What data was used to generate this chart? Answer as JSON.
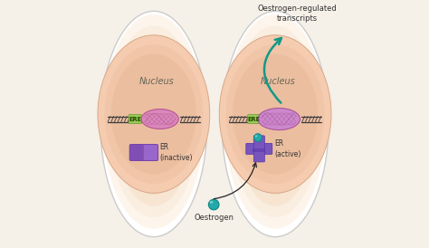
{
  "bg_color": "#f5f0e8",
  "cell_bg": "#f8f3ec",
  "cytoplasm_color": "#f5e8d8",
  "nucleus_color": "#f0cdb8",
  "dna_color": "#3a3a3a",
  "helix_color": "#cc77aa",
  "ere_color": "#99cc55",
  "er_inactive_rect_color_left": "#8866bb",
  "er_inactive_rect_color_right": "#6644aa",
  "er_active_color": "#6655aa",
  "er_blob_color": "#cc88cc",
  "oestrogen_color": "#22aaaa",
  "oestrogen_edge": "#118888",
  "arrow_color": "#119988",
  "black_arrow": "#222222",
  "text_color": "#333333",
  "cell_edge": "#cccccc",
  "nucleus_edge": "#ddbbaa",
  "text_nucleus": "Nucleus",
  "text_ere": "ERE",
  "text_er_inactive": "ER\n(inactive)",
  "text_er_active": "ER\n(active)",
  "text_oestrogen": "Oestrogen",
  "text_transcript": "Oestrogen-regulated\ntranscripts",
  "c1x": 0.255,
  "c1y": 0.5,
  "c2x": 0.745,
  "c2y": 0.5,
  "cell_rw": 0.215,
  "cell_rh": 0.455
}
